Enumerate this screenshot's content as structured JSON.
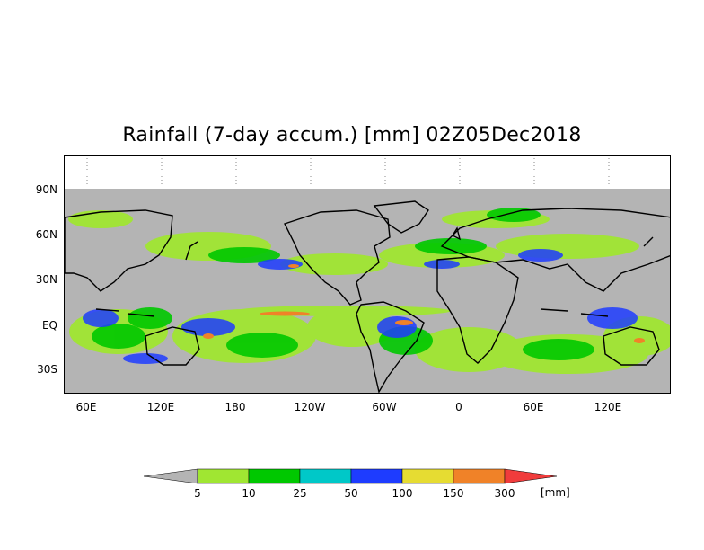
{
  "title": "Rainfall (7-day accum.) [mm] 02Z05Dec2018",
  "map": {
    "lat_labels": [
      "90N",
      "60N",
      "30N",
      "EQ",
      "30S"
    ],
    "lon_labels": [
      "60E",
      "120E",
      "180",
      "120W",
      "60W",
      "0",
      "60E",
      "120E"
    ],
    "land_color": "#b4b4b4",
    "coast_color": "#000000"
  },
  "colorbar": {
    "levels": [
      "5",
      "10",
      "25",
      "50",
      "100",
      "150",
      "300"
    ],
    "colors": [
      "#b4b4b4",
      "#a0e632",
      "#00c800",
      "#00c8c8",
      "#1e3cff",
      "#e6dc32",
      "#f08228",
      "#f03c3c"
    ],
    "unit": "[mm]"
  }
}
